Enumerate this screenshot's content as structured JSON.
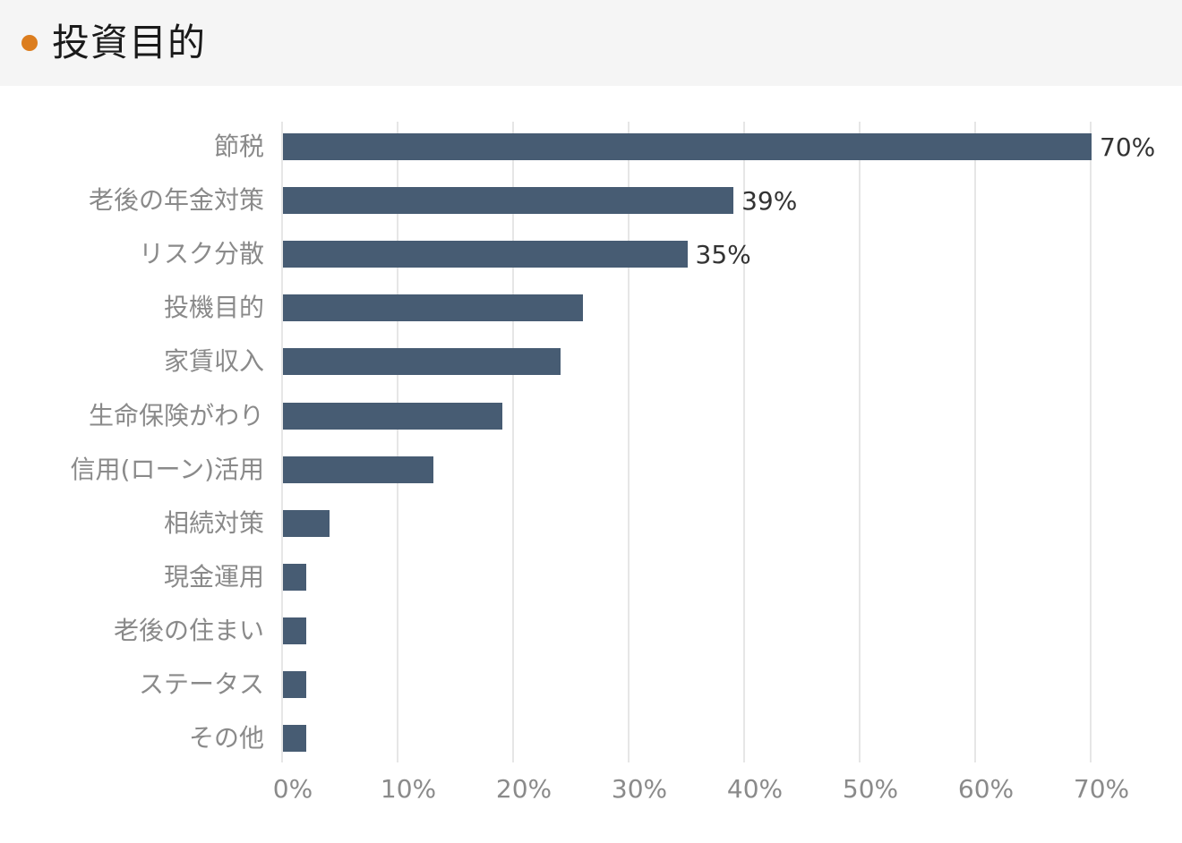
{
  "header": {
    "title": "投資目的",
    "bullet_color": "#dc7d1e"
  },
  "chart_data": {
    "type": "bar",
    "orientation": "horizontal",
    "title": "投資目的",
    "xlabel": "",
    "ylabel": "",
    "xlim": [
      0,
      70
    ],
    "grid": true,
    "bar_color": "#475c73",
    "categories": [
      "節税",
      "老後の年金対策",
      "リスク分散",
      "投機目的",
      "家賃収入",
      "生命保険がわり",
      "信用(ローン)活用",
      "相続対策",
      "現金運用",
      "老後の住まい",
      "ステータス",
      "その他"
    ],
    "values": [
      70,
      39,
      35,
      26,
      24,
      19,
      13,
      4,
      2,
      2,
      2,
      2
    ],
    "data_labels": [
      "70%",
      "39%",
      "35%",
      "",
      "",
      "",
      "",
      "",
      "",
      "",
      "",
      ""
    ],
    "x_ticks": [
      "0%",
      "10%",
      "20%",
      "30%",
      "40%",
      "50%",
      "60%",
      "70%"
    ]
  }
}
